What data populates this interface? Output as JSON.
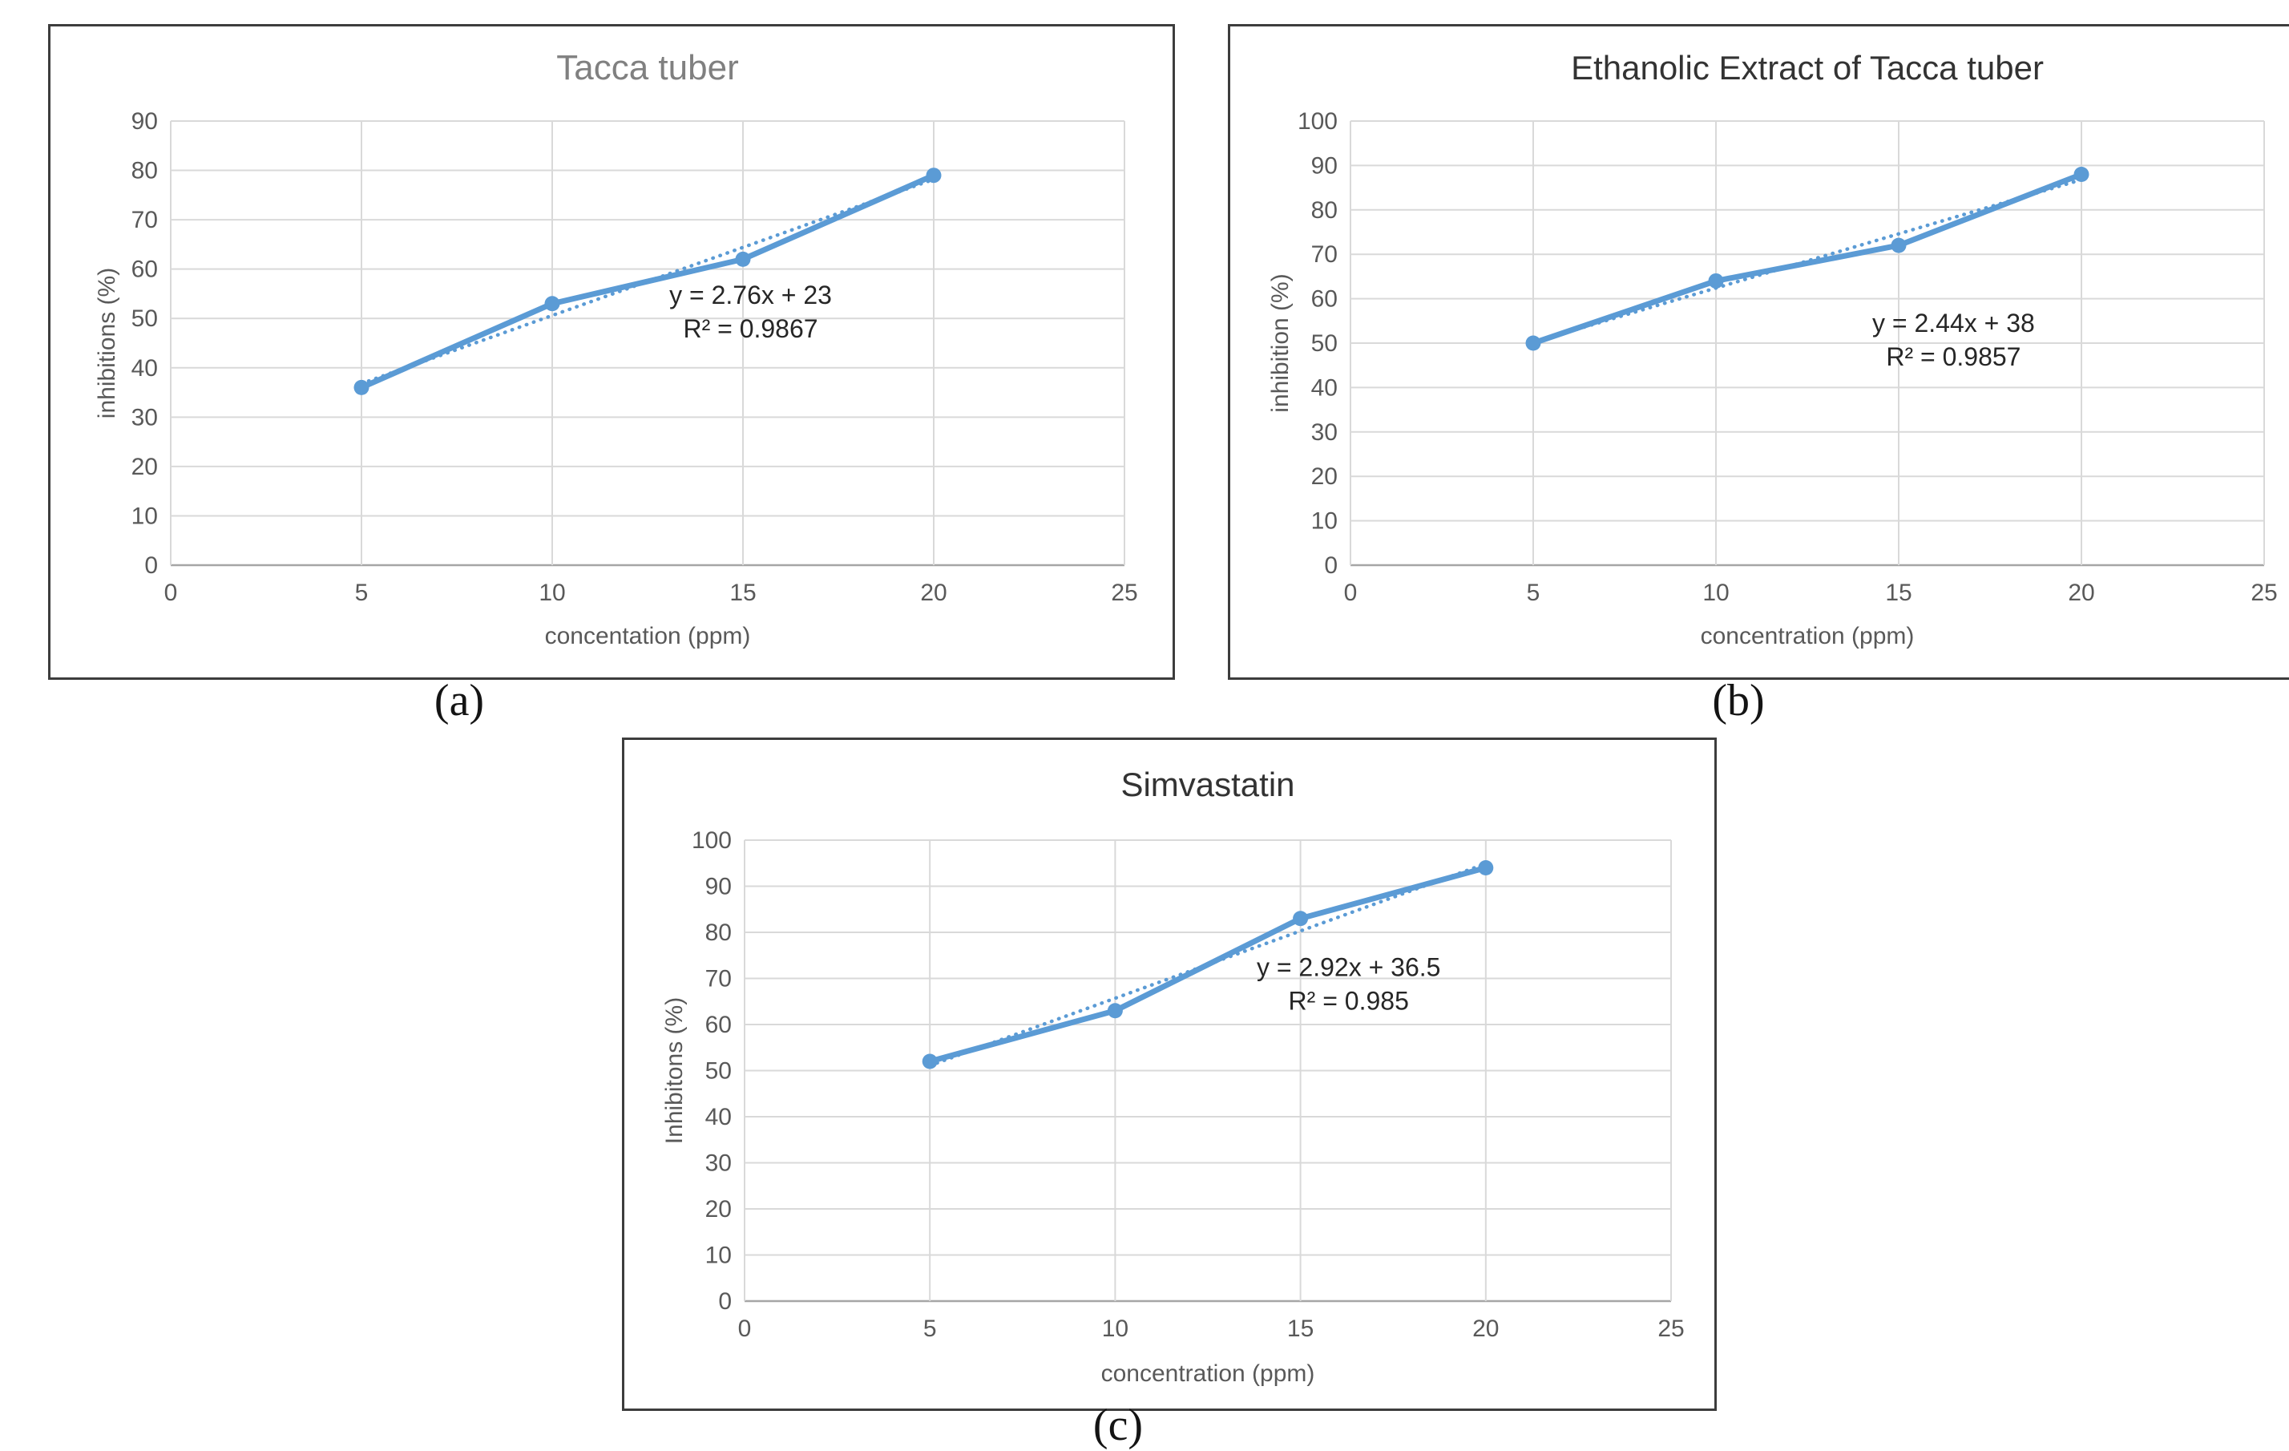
{
  "page": {
    "background": "#ffffff"
  },
  "figure": {
    "captions": [
      "(a)",
      "(b)",
      "(c)"
    ]
  },
  "palette": {
    "series_blue": "#5b9bd5",
    "gridline": "#d9d9d9",
    "axis_line": "#a6a6a6",
    "tick_text": "#595959",
    "annotation_text": "#262626"
  },
  "chart_data": [
    {
      "type": "line",
      "title": "Tacca tuber",
      "title_color": "#808080",
      "xlabel": "concentation (ppm)",
      "ylabel": "inhibitions (%)",
      "x": [
        5,
        10,
        15,
        20
      ],
      "values": [
        36,
        53,
        62,
        79
      ],
      "xticks": [
        0,
        5,
        10,
        15,
        20,
        25
      ],
      "xlim": [
        0,
        25
      ],
      "ylim": [
        0,
        90
      ],
      "ytick_step": 10,
      "grid": true,
      "legend": "none",
      "series_color": "#5b9bd5",
      "trendline": {
        "style": "dotted",
        "slope": 2.76,
        "intercept": 23,
        "x_start": 5,
        "x_end": 20
      },
      "annotation": {
        "lines": [
          "y = 2.76x + 23",
          "R² = 0.9867"
        ],
        "x": 15.2,
        "y": 53
      }
    },
    {
      "type": "line",
      "title": "Ethanolic Extract of Tacca tuber",
      "title_color": "#333333",
      "xlabel": "concentration (ppm)",
      "ylabel": "inhibition (%)",
      "x": [
        5,
        10,
        15,
        20
      ],
      "values": [
        50,
        64,
        72,
        88
      ],
      "xticks": [
        0,
        5,
        10,
        15,
        20,
        25
      ],
      "xlim": [
        0,
        25
      ],
      "ylim": [
        0,
        100
      ],
      "ytick_step": 10,
      "grid": true,
      "legend": "none",
      "series_color": "#5b9bd5",
      "trendline": {
        "style": "dotted",
        "slope": 2.44,
        "intercept": 38,
        "x_start": 5,
        "x_end": 20
      },
      "annotation": {
        "lines": [
          "y = 2.44x + 38",
          "R² = 0.9857"
        ],
        "x": 16.5,
        "y": 52.5
      }
    },
    {
      "type": "line",
      "title": "Simvastatin",
      "title_color": "#333333",
      "xlabel": "concentration (ppm)",
      "ylabel": "Inhibitons (%)",
      "x": [
        5,
        10,
        15,
        20
      ],
      "values": [
        52,
        63,
        83,
        94
      ],
      "xticks": [
        0,
        5,
        10,
        15,
        20,
        25
      ],
      "xlim": [
        0,
        25
      ],
      "ylim": [
        0,
        100
      ],
      "ytick_step": 10,
      "grid": true,
      "legend": "none",
      "series_color": "#5b9bd5",
      "trendline": {
        "style": "dotted",
        "slope": 2.92,
        "intercept": 36.5,
        "x_start": 5,
        "x_end": 20
      },
      "annotation": {
        "lines": [
          "y = 2.92x + 36.5",
          "R² = 0.985"
        ],
        "x": 16.3,
        "y": 70.5
      }
    }
  ]
}
